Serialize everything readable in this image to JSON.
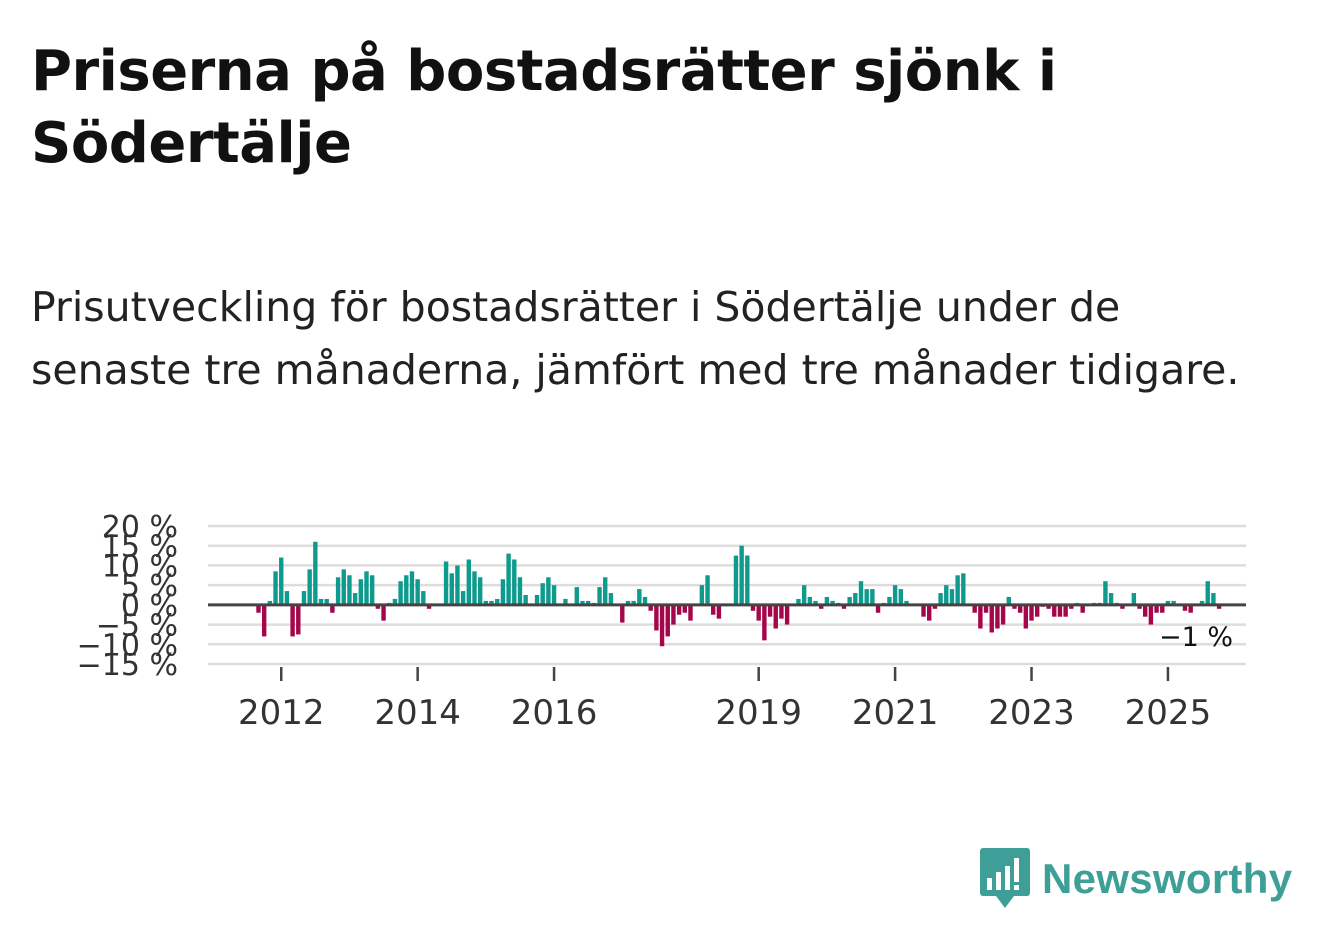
{
  "title": "Priserna på bostadsrätter sjönk i Södertälje",
  "subtitle": "Prisutveckling för bostadsrätter i Södertälje under de senaste tre månaderna, jämfört med tre månader tidigare.",
  "brand": "Newsworthy",
  "colors": {
    "positive": "#0f9a8e",
    "negative": "#a5054a",
    "zero_line": "#444444",
    "grid": "#dddddd",
    "brand": "#3e9e98"
  },
  "chart_data": {
    "type": "bar",
    "title": "",
    "xlabel": "",
    "ylabel": "",
    "ylim": [
      -15,
      20
    ],
    "y_ticks": [
      20,
      15,
      10,
      5,
      0,
      -5,
      -10,
      -15
    ],
    "y_tick_labels": [
      "20 %",
      "15 %",
      "10 %",
      "5 %",
      "0 %",
      "−5 %",
      "−10 %",
      "−15 %"
    ],
    "x_ticks": [
      {
        "label": "2012",
        "index": 4
      },
      {
        "label": "2014",
        "index": 28
      },
      {
        "label": "2016",
        "index": 52
      },
      {
        "label": "2019",
        "index": 88
      },
      {
        "label": "2021",
        "index": 112
      },
      {
        "label": "2023",
        "index": 136
      },
      {
        "label": "2025",
        "index": 160
      }
    ],
    "end_label": "−1 %",
    "values": [
      -2,
      -8,
      1,
      8.5,
      12,
      3.5,
      -8,
      -7.5,
      3.5,
      9,
      16,
      1.5,
      1.5,
      -2,
      7,
      9,
      7.5,
      3,
      6.5,
      8.5,
      7.5,
      -1,
      -4,
      0.5,
      1.5,
      6,
      7.5,
      8.5,
      6.5,
      3.5,
      -1,
      0,
      0,
      11,
      8,
      10,
      3.5,
      11.5,
      8.5,
      7,
      1,
      1,
      1.5,
      6.5,
      13,
      11.5,
      7,
      2.5,
      0,
      2.5,
      5.5,
      7,
      5,
      0,
      1.5,
      0,
      4.5,
      1,
      1,
      0.5,
      4.5,
      7,
      3,
      0,
      -4.5,
      1,
      1,
      4,
      2,
      -1.5,
      -6.5,
      -10.5,
      -8,
      -5,
      -2.5,
      -2,
      -4,
      0,
      5,
      7.5,
      -2.5,
      -3.5,
      0,
      0,
      12.5,
      15,
      12.5,
      -1.5,
      -4,
      -9,
      -3,
      -6,
      -3.5,
      -5,
      0,
      1.5,
      5,
      2,
      1,
      -1,
      2,
      1,
      0.5,
      -1,
      2,
      3,
      6,
      4,
      4,
      -2,
      0.5,
      2,
      5,
      4,
      1,
      0,
      0,
      -3,
      -4,
      -1,
      3,
      5,
      4,
      7.5,
      8,
      0,
      -2,
      -6,
      -2,
      -7,
      -6,
      -5,
      2,
      -1,
      -2,
      -6,
      -4,
      -3,
      -0.5,
      -1,
      -3,
      -3,
      -3,
      -1,
      0.5,
      -2,
      0,
      0.5,
      0.5,
      6,
      3,
      0.5,
      -1,
      0,
      3,
      -1,
      -3,
      -5,
      -2,
      -2,
      1,
      1,
      0,
      -1.5,
      -2,
      0,
      1,
      6,
      3,
      -1
    ]
  }
}
